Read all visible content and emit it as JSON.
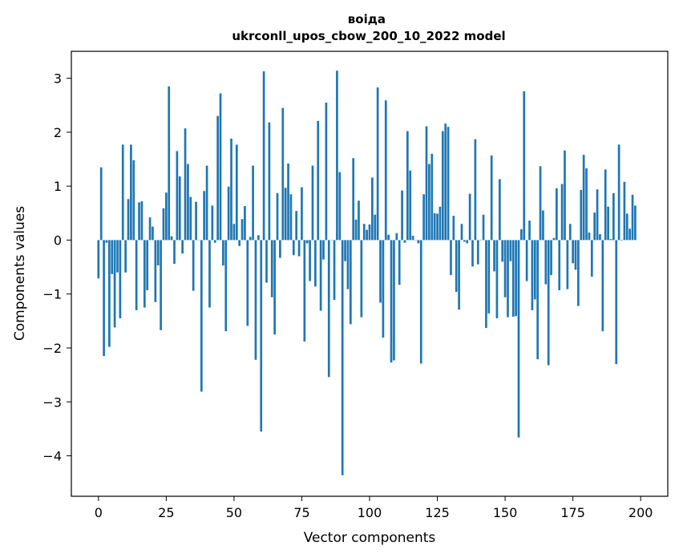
{
  "chart_data": {
    "type": "bar",
    "title": "воіда\nukrconll_upos_cbow_200_10_2022 model",
    "title_lines": [
      "воіда",
      "ukrconll_upos_cbow_200_10_2022 model"
    ],
    "xlabel": "Vector components",
    "ylabel": "Components values",
    "xlim": [
      -10,
      210
    ],
    "ylim": [
      -4.75,
      3.5
    ],
    "xticks": [
      0,
      25,
      50,
      75,
      100,
      125,
      150,
      175,
      200
    ],
    "xtick_labels": [
      "0",
      "25",
      "50",
      "75",
      "100",
      "125",
      "150",
      "175",
      "200"
    ],
    "yticks": [
      3,
      2,
      1,
      0,
      -1,
      -2,
      -3,
      -4
    ],
    "ytick_labels": [
      "3",
      "2",
      "1",
      "0",
      "−1",
      "−2",
      "−3",
      "−4"
    ],
    "grid": false,
    "bar_color": "#1f77b4",
    "values": [
      -0.71,
      1.35,
      -2.15,
      -0.05,
      -1.98,
      -0.63,
      -1.62,
      -0.6,
      -1.45,
      1.77,
      -0.6,
      0.76,
      1.77,
      1.48,
      -1.3,
      0.7,
      0.72,
      -1.25,
      -0.93,
      0.42,
      0.25,
      -1.15,
      -0.47,
      -1.67,
      0.59,
      0.88,
      2.85,
      0.07,
      -0.44,
      1.65,
      1.18,
      -0.25,
      2.07,
      1.41,
      0.8,
      -0.94,
      0.71,
      0.0,
      -2.81,
      0.91,
      1.38,
      -1.25,
      0.64,
      -0.05,
      2.3,
      2.72,
      -0.47,
      -1.69,
      0.99,
      1.88,
      0.3,
      1.77,
      -0.11,
      0.39,
      0.63,
      -1.59,
      0.06,
      1.38,
      -2.22,
      0.09,
      -3.55,
      3.13,
      -0.79,
      2.18,
      -1.06,
      -1.75,
      0.87,
      -0.33,
      2.45,
      0.97,
      1.42,
      0.85,
      -0.28,
      0.54,
      -0.3,
      0.98,
      -1.88,
      -0.06,
      -0.76,
      1.38,
      -0.86,
      2.21,
      -1.31,
      -0.36,
      2.55,
      -2.54,
      0.0,
      -1.11,
      3.14,
      1.26,
      -4.36,
      -0.39,
      -0.91,
      -1.56,
      1.52,
      0.38,
      0.73,
      -1.43,
      0.3,
      0.19,
      0.29,
      1.16,
      0.47,
      2.83,
      -1.16,
      -1.81,
      2.59,
      0.1,
      -2.27,
      -2.23,
      0.13,
      -0.83,
      0.92,
      -0.05,
      2.02,
      1.29,
      0.08,
      0.0,
      -0.06,
      -2.29,
      0.85,
      2.11,
      1.41,
      1.6,
      0.5,
      0.49,
      0.62,
      2.02,
      2.16,
      2.1,
      -0.65,
      0.45,
      -0.96,
      -1.29,
      0.3,
      -0.03,
      -0.06,
      0.86,
      -0.49,
      1.87,
      -0.45,
      0.0,
      0.47,
      -1.63,
      -1.36,
      1.57,
      -0.58,
      -1.45,
      1.13,
      -0.4,
      -1.06,
      -1.43,
      -0.39,
      -1.42,
      -1.41,
      -3.66,
      0.2,
      2.76,
      -0.76,
      0.36,
      -1.3,
      -1.1,
      -2.21,
      1.37,
      0.55,
      -0.82,
      -2.32,
      -0.65,
      0.04,
      0.96,
      -0.93,
      1.04,
      1.66,
      -0.91,
      0.3,
      -0.43,
      -0.55,
      -1.22,
      0.93,
      1.58,
      1.33,
      0.14,
      -0.68,
      0.51,
      0.94,
      0.11,
      -1.69,
      1.31,
      0.62,
      0.02,
      0.87,
      -2.3,
      1.77,
      -0.01,
      1.08,
      0.49,
      0.21,
      0.84,
      0.64
    ]
  }
}
